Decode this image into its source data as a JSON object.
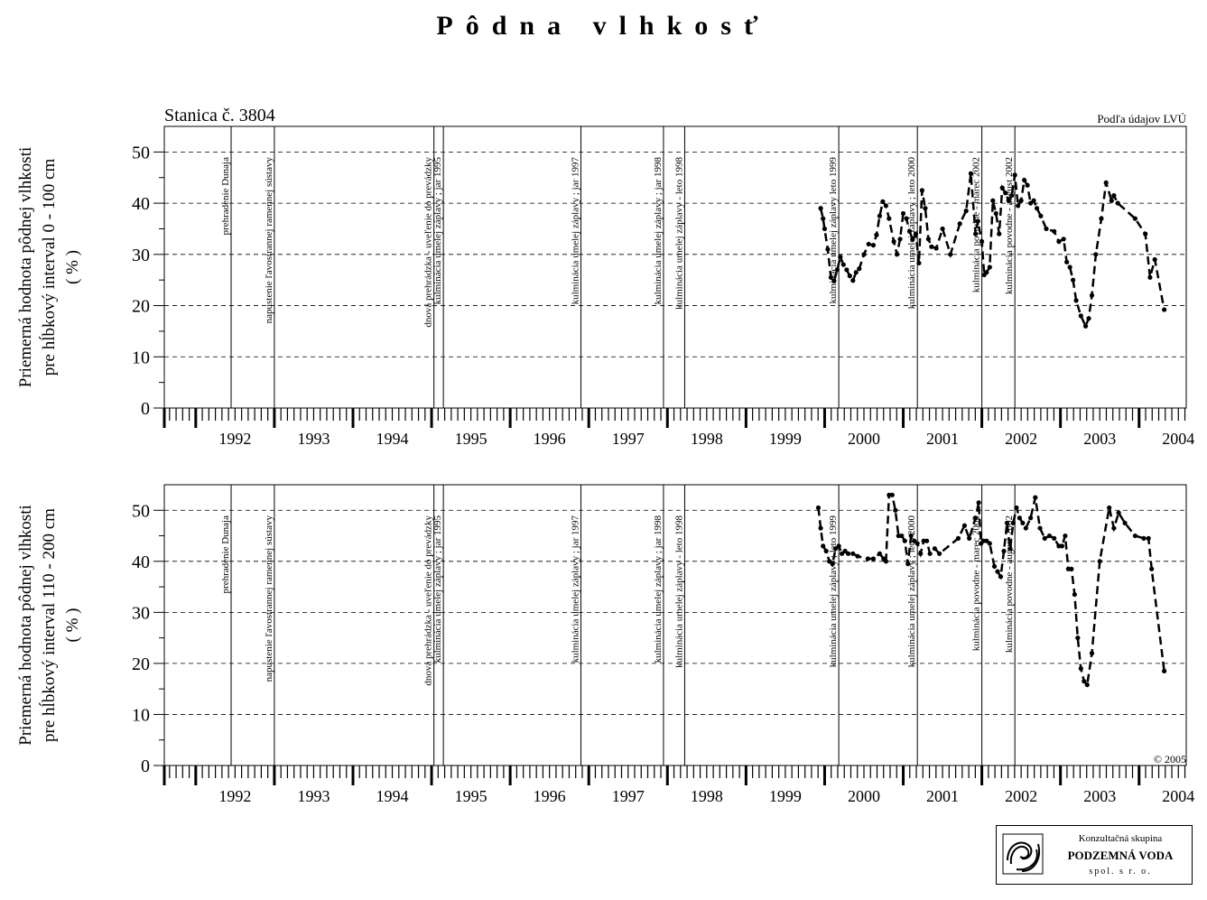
{
  "title": "Pôdna vlhkosť",
  "source_note": "Podľa údajov LVÚ",
  "copyright": "© 2005",
  "logo": {
    "top": "Konzultačná skupina",
    "name": "PODZEMNÁ VODA",
    "bottom": "spol. s r. o."
  },
  "colors": {
    "line": "#000000",
    "grid": "#000000",
    "background": "#ffffff"
  },
  "chart_data": [
    {
      "type": "line",
      "title": "Stanica č. 3804",
      "ylabel": [
        "Priemerná hodnota pôdnej vlhkosti",
        "pre hĺbkový interval 0 - 100 cm",
        "( % )"
      ],
      "xlabel": "",
      "xlim": [
        1991.6,
        2004.6
      ],
      "ylim": [
        0,
        55
      ],
      "yticks": [
        0,
        10,
        20,
        30,
        40,
        50
      ],
      "xtick_labels": [
        "1992",
        "1993",
        "1994",
        "1995",
        "1996",
        "1997",
        "1998",
        "1999",
        "2000",
        "2001",
        "2002",
        "2003",
        "2004"
      ],
      "grid": true,
      "line_style": "dashed",
      "events": [
        {
          "x": 1992.45,
          "label": "prehradenie Dunaja"
        },
        {
          "x": 1993.0,
          "label": "napustenie ľavostrannej ramennej sústavy"
        },
        {
          "x": 1995.03,
          "label": "dnová prehrádzka - uveľenie do prevádzky"
        },
        {
          "x": 1995.15,
          "label": "kulminácia umelej záplavy ; jar 1995"
        },
        {
          "x": 1996.9,
          "label": "kulminácia umelej záplavy ; jar 1997"
        },
        {
          "x": 1997.95,
          "label": "kulminácia umelej záplavy ; jar 1998"
        },
        {
          "x": 1998.22,
          "label": "kulminácia umelej záplavy - leto 1998"
        },
        {
          "x": 2000.18,
          "label": "kulminácia umelej záplavy leto 1999"
        },
        {
          "x": 2001.18,
          "label": "kulminácia umelej záplavy ; leto 2000"
        },
        {
          "x": 2002.0,
          "label": "kulminácia povodne - marec 2002"
        },
        {
          "x": 2002.42,
          "label": "kulminácia povodne - august 2002"
        }
      ],
      "series": [
        {
          "x": [
            1999.95,
            1999.98,
            2000.0,
            2000.04,
            2000.08,
            2000.12,
            2000.16,
            2000.2,
            2000.24,
            2000.28,
            2000.32,
            2000.36,
            2000.4,
            2000.44,
            2000.5,
            2000.56,
            2000.62,
            2000.66,
            2000.7,
            2000.74,
            2000.78,
            2000.82,
            2000.88,
            2000.92,
            2000.96,
            2001.0,
            2001.04,
            2001.08,
            2001.12,
            2001.16,
            2001.2,
            2001.24,
            2001.28,
            2001.32,
            2001.36,
            2001.42,
            2001.5,
            2001.6,
            2001.72,
            2001.8,
            2001.86,
            2001.92,
            2001.95,
            2002.0,
            2002.03,
            2002.06,
            2002.1,
            2002.14,
            2002.18,
            2002.22,
            2002.26,
            2002.3,
            2002.34,
            2002.38,
            2002.42,
            2002.46,
            2002.5,
            2002.54,
            2002.58,
            2002.62,
            2002.66,
            2002.7,
            2002.75,
            2002.82,
            2002.92,
            2002.98,
            2003.04,
            2003.08,
            2003.12,
            2003.16,
            2003.2,
            2003.26,
            2003.32,
            2003.36,
            2003.4,
            2003.45,
            2003.52,
            2003.58,
            2003.65,
            2003.68,
            2003.73,
            2003.95,
            2004.08,
            2004.14,
            2004.2,
            2004.32
          ],
          "y": [
            39,
            37,
            35,
            31,
            25.5,
            24.8,
            27,
            29.5,
            28,
            27,
            25.8,
            24.9,
            26.5,
            27.2,
            30,
            32,
            31.8,
            33.8,
            37.5,
            40.3,
            39.5,
            37,
            32.5,
            30,
            33,
            38,
            37,
            34.5,
            33,
            34,
            28.3,
            42.5,
            39,
            33,
            31.5,
            31.2,
            35,
            30,
            36,
            38.5,
            45.8,
            34,
            36.5,
            32.5,
            26,
            26.5,
            27.5,
            40.5,
            38,
            34,
            43,
            42,
            40.5,
            41.5,
            45.5,
            39.5,
            40.5,
            44.5,
            43.5,
            40,
            40.5,
            39,
            37.5,
            35,
            34.5,
            32.5,
            33,
            28.5,
            27.5,
            25,
            21,
            18,
            16,
            17.5,
            22,
            30,
            37,
            44,
            40.5,
            41.5,
            40,
            37,
            34,
            25.5,
            29,
            19.2
          ]
        }
      ]
    },
    {
      "type": "line",
      "title": "",
      "ylabel": [
        "Priemerná hodnota pôdnej vlhkosti",
        "pre hĺbkový interval 110 - 200 cm",
        "( % )"
      ],
      "xlabel": "",
      "xlim": [
        1991.6,
        2004.6
      ],
      "ylim": [
        0,
        55
      ],
      "yticks": [
        0,
        10,
        20,
        30,
        40,
        50
      ],
      "xtick_labels": [
        "1992",
        "1993",
        "1994",
        "1995",
        "1996",
        "1997",
        "1998",
        "1999",
        "2000",
        "2001",
        "2002",
        "2003",
        "2004"
      ],
      "grid": true,
      "line_style": "dashed",
      "events": [
        {
          "x": 1992.45,
          "label": "prehradenie Dunaja"
        },
        {
          "x": 1993.0,
          "label": "napustenie ľavostrannej ramennej sústavy"
        },
        {
          "x": 1995.03,
          "label": "dnová prehrádzka - uveľenie do prevádzky"
        },
        {
          "x": 1995.15,
          "label": "kulminácia umelej záplavy ; jar 1995"
        },
        {
          "x": 1996.9,
          "label": "kulminácia umelej záplavy ; jar 1997"
        },
        {
          "x": 1997.95,
          "label": "kulminácia umelej záplavy ; jar 1998"
        },
        {
          "x": 1998.22,
          "label": "kulminácia umelej záplavy - leto 1998"
        },
        {
          "x": 2000.18,
          "label": "kulminácia umelej záplavy ; leto 1999"
        },
        {
          "x": 2001.18,
          "label": "kulminácia umelej záplavy ; leto 2000"
        },
        {
          "x": 2002.0,
          "label": "kulminácia povodne - marec 2002"
        },
        {
          "x": 2002.42,
          "label": "kulminácia povodne - august 2002"
        }
      ],
      "series": [
        {
          "x": [
            1999.92,
            1999.95,
            1999.98,
            2000.02,
            2000.06,
            2000.1,
            2000.14,
            2000.18,
            2000.22,
            2000.26,
            2000.3,
            2000.36,
            2000.42,
            2000.55,
            2000.62,
            2000.7,
            2000.75,
            2000.78,
            2000.82,
            2000.86,
            2000.9,
            2000.94,
            2000.98,
            2001.02,
            2001.06,
            2001.1,
            2001.14,
            2001.18,
            2001.22,
            2001.26,
            2001.3,
            2001.34,
            2001.4,
            2001.46,
            2001.7,
            2001.78,
            2001.84,
            2001.92,
            2001.96,
            2001.99,
            2002.02,
            2002.06,
            2002.1,
            2002.16,
            2002.2,
            2002.24,
            2002.28,
            2002.32,
            2002.36,
            2002.4,
            2002.44,
            2002.48,
            2002.52,
            2002.56,
            2002.62,
            2002.68,
            2002.74,
            2002.8,
            2002.86,
            2002.92,
            2002.98,
            2003.02,
            2003.06,
            2003.1,
            2003.14,
            2003.18,
            2003.22,
            2003.26,
            2003.3,
            2003.34,
            2003.4,
            2003.5,
            2003.62,
            2003.68,
            2003.74,
            2003.82,
            2003.95,
            2004.06,
            2004.12,
            2004.16,
            2004.32
          ],
          "y": [
            50.5,
            46.5,
            43,
            42,
            40,
            39.5,
            42.5,
            43,
            41.5,
            42,
            41.5,
            41.5,
            41,
            40.5,
            40.5,
            41.5,
            40.5,
            40,
            53,
            53,
            50,
            45,
            45,
            44,
            39.5,
            45,
            44,
            43.5,
            41.5,
            44,
            44,
            41.5,
            42.5,
            41.5,
            44.5,
            47,
            44.5,
            48.5,
            51.5,
            43.5,
            44,
            44,
            43.5,
            39,
            38,
            37,
            42,
            47.5,
            42.5,
            47.5,
            50.5,
            48.5,
            47.5,
            46.5,
            48.5,
            52.5,
            46.5,
            44.5,
            45,
            44.5,
            43,
            43,
            45,
            38.5,
            38.5,
            33.5,
            25,
            19,
            16.5,
            15.8,
            22,
            40,
            50.5,
            46.5,
            49.5,
            47.5,
            45,
            44.5,
            44.5,
            38.5,
            18.5
          ]
        }
      ]
    }
  ]
}
